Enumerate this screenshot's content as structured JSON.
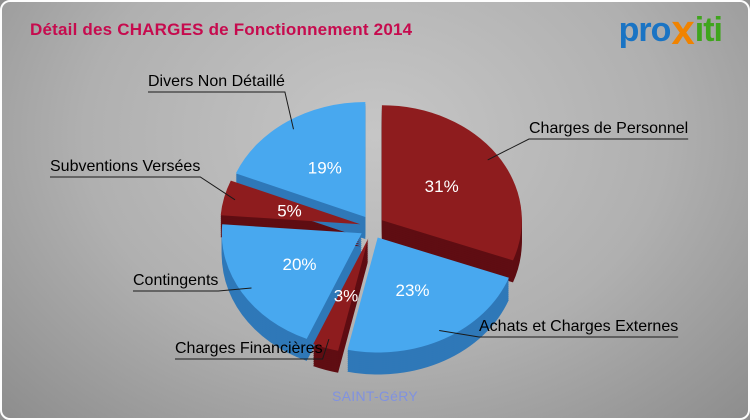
{
  "header": {
    "title": "Détail des CHARGES de Fonctionnement 2014"
  },
  "logo": {
    "pro": "pro",
    "x": "x",
    "iti": "iti"
  },
  "footer": {
    "text": "SAINT-GéRY"
  },
  "colors": {
    "title": "#c60b4e",
    "logo_pro": "#1a74c4",
    "logo_x": "#f08300",
    "logo_iti": "#3fa51d",
    "footer": "#8092e0",
    "label_text": "#000000",
    "leader_line": "#1a1a1a",
    "percent_text": "#ffffff"
  },
  "chart_data": {
    "type": "pie",
    "title": "Détail des CHARGES de Fonctionnement 2014",
    "unit": "%",
    "style": "3d-exploded",
    "direction": "clockwise",
    "start_angle_deg": 0,
    "legend_position": "callouts",
    "slices": [
      {
        "label": "Charges de Personnel",
        "value": 31,
        "pct_label": "31%",
        "color": "#8e1c1e",
        "side_color": "#5f0d12"
      },
      {
        "label": "Achats et Charges Externes",
        "value": 23,
        "pct_label": "23%",
        "color": "#48a8ef",
        "side_color": "#2f78b8"
      },
      {
        "label": "Charges Financières",
        "value": 3,
        "pct_label": "3%",
        "color": "#8e1c1e",
        "side_color": "#5f0d12"
      },
      {
        "label": "Contingents",
        "value": 20,
        "pct_label": "20%",
        "color": "#48a8ef",
        "side_color": "#2f78b8"
      },
      {
        "label": "Subventions Versées",
        "value": 5,
        "pct_label": "5%",
        "color": "#8e1c1e",
        "side_color": "#5f0d12"
      },
      {
        "label": "Divers Non Détaillé",
        "value": 19,
        "pct_label": "19%",
        "color": "#48a8ef",
        "side_color": "#2f78b8"
      }
    ]
  }
}
